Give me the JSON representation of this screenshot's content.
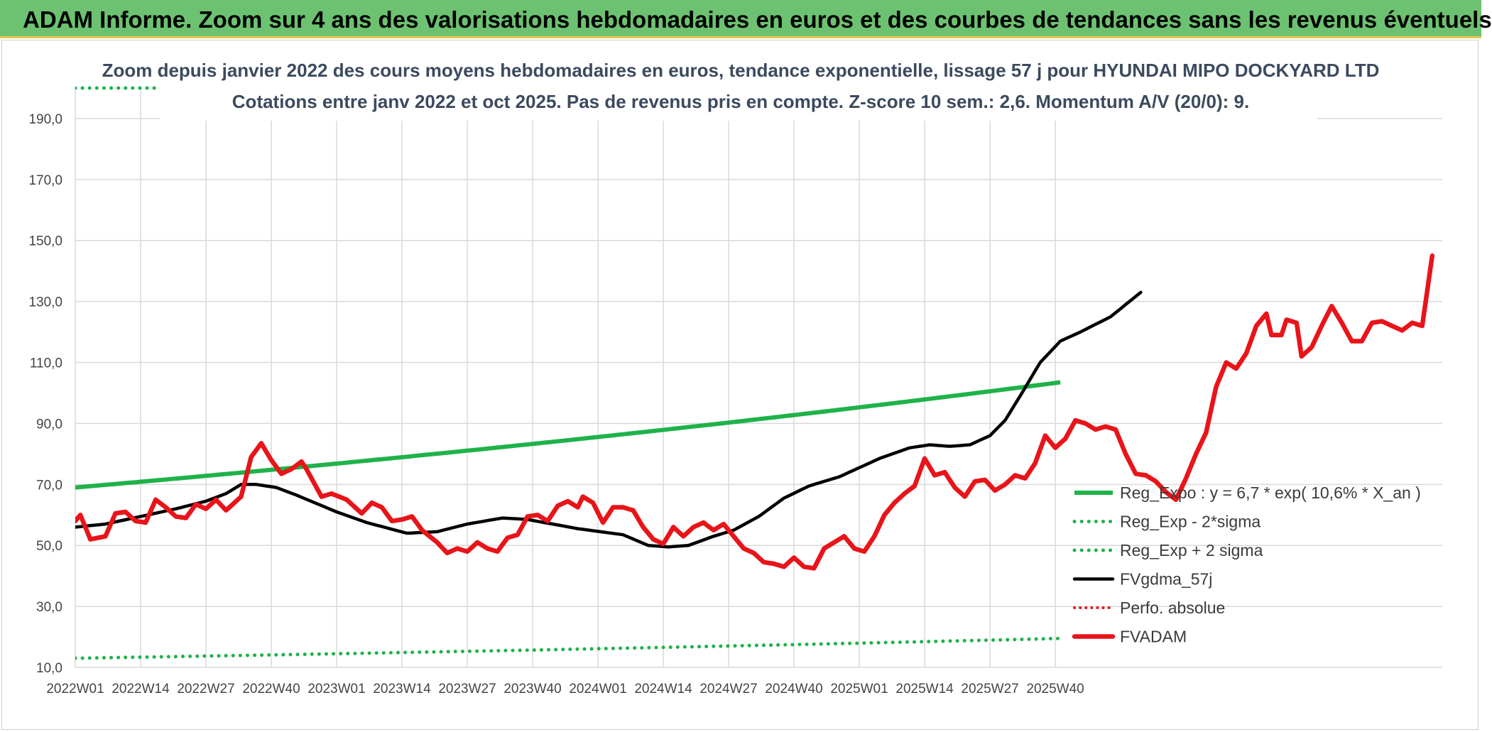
{
  "banner": {
    "title": "ADAM Informe. Zoom sur 4 ans des valorisations hebdomadaires en euros et des courbes de tendances sans les revenus éventuels"
  },
  "colors": {
    "banner_bg": "#6cc270",
    "reg_expo": "#1fb24a",
    "fvadam": "#e8141a",
    "fvgdma": "#000000",
    "perfo": "#e8141a"
  },
  "chart_data": {
    "type": "line",
    "title": "Zoom depuis janvier 2022 des cours moyens hebdomadaires en euros, tendance exponentielle, lissage 57 j pour HYUNDAI MIPO DOCKYARD LTD",
    "subtitle": "Cotations entre janv 2022 et oct 2025. Pas de revenus pris en compte. Z-score 10 sem.: 2,6. Momentum A/V (20/0): 9.",
    "xlabel": "",
    "ylabel": "",
    "ylim": [
      10,
      200
    ],
    "yticks": [
      "10,0",
      "30,0",
      "50,0",
      "70,0",
      "90,0",
      "110,0",
      "130,0",
      "150,0",
      "170,0",
      "190,0"
    ],
    "ytick_values": [
      10,
      30,
      50,
      70,
      90,
      110,
      130,
      150,
      170,
      190
    ],
    "xticks": [
      "2022W01",
      "2022W14",
      "2022W27",
      "2022W40",
      "2023W01",
      "2023W14",
      "2023W27",
      "2023W40",
      "2024W01",
      "2024W14",
      "2024W27",
      "2024W40",
      "2025W01",
      "2025W14",
      "2025W27",
      "2025W40"
    ],
    "weeks_total": 197,
    "legend_position": "bottom-right",
    "series": [
      {
        "name": "Reg_Expo : y = 6,7 * exp( 10,6% *  X_an )",
        "style": "solid-thick",
        "anchors": [
          [
            0,
            69.0
          ],
          [
            196,
            103.5
          ]
        ]
      },
      {
        "name": "Reg_Exp - 2*sigma",
        "style": "dotted",
        "anchors": [
          [
            0,
            13.0
          ],
          [
            196,
            19.5
          ]
        ]
      },
      {
        "name": "Reg_Exp + 2 sigma",
        "style": "dotted",
        "anchors": [
          [
            0,
            200.0
          ],
          [
            196,
            200.0
          ]
        ]
      },
      {
        "name": "FVgdma_57j",
        "style": "solid",
        "anchors": [
          [
            0,
            56
          ],
          [
            6,
            57
          ],
          [
            13,
            59.5
          ],
          [
            20,
            62
          ],
          [
            26,
            64.5
          ],
          [
            30,
            67
          ],
          [
            33,
            70
          ],
          [
            36,
            70
          ],
          [
            40,
            69
          ],
          [
            44,
            66.5
          ],
          [
            52,
            61
          ],
          [
            58,
            57.5
          ],
          [
            66,
            54
          ],
          [
            72,
            54.5
          ],
          [
            78,
            57
          ],
          [
            85,
            59
          ],
          [
            90,
            58.5
          ],
          [
            100,
            55.5
          ],
          [
            109,
            53.5
          ],
          [
            114,
            50
          ],
          [
            118,
            49.5
          ],
          [
            122,
            50
          ],
          [
            127,
            53
          ],
          [
            131,
            55
          ],
          [
            136,
            59.5
          ],
          [
            141,
            65.5
          ],
          [
            146,
            69.5
          ],
          [
            152,
            72.5
          ],
          [
            160,
            78.5
          ],
          [
            166,
            82
          ],
          [
            170,
            83
          ],
          [
            174,
            82.5
          ],
          [
            178,
            83
          ],
          [
            182,
            86
          ],
          [
            185,
            91
          ],
          [
            188,
            99
          ],
          [
            192,
            110
          ],
          [
            196,
            117
          ],
          [
            200,
            120
          ],
          [
            206,
            125
          ],
          [
            212,
            133
          ]
        ]
      },
      {
        "name": "Perfo. absolue",
        "style": "dotted-red",
        "anchors": []
      },
      {
        "name": "FVADAM",
        "style": "solid-thick-red",
        "anchors": [
          [
            0,
            58
          ],
          [
            1,
            60
          ],
          [
            3,
            52
          ],
          [
            6,
            53
          ],
          [
            8,
            60.5
          ],
          [
            10,
            61
          ],
          [
            12,
            58
          ],
          [
            14,
            57.5
          ],
          [
            16,
            65
          ],
          [
            18,
            62.5
          ],
          [
            20,
            59.5
          ],
          [
            22,
            59
          ],
          [
            24,
            63.5
          ],
          [
            26,
            62
          ],
          [
            28,
            65
          ],
          [
            30,
            61.5
          ],
          [
            33,
            66
          ],
          [
            35,
            79
          ],
          [
            37,
            83.5
          ],
          [
            39,
            78
          ],
          [
            41,
            73.5
          ],
          [
            43,
            75
          ],
          [
            45,
            77.5
          ],
          [
            46,
            75
          ],
          [
            49,
            66
          ],
          [
            51,
            67
          ],
          [
            54,
            65
          ],
          [
            57,
            60.5
          ],
          [
            59,
            64
          ],
          [
            61,
            62.5
          ],
          [
            63,
            58
          ],
          [
            65,
            58.5
          ],
          [
            67,
            59.5
          ],
          [
            69,
            55
          ],
          [
            72,
            51
          ],
          [
            74,
            47.5
          ],
          [
            76,
            49
          ],
          [
            78,
            48
          ],
          [
            80,
            51
          ],
          [
            82,
            49
          ],
          [
            84,
            48
          ],
          [
            86,
            52.5
          ],
          [
            88,
            53.5
          ],
          [
            90,
            59.5
          ],
          [
            92,
            60
          ],
          [
            94,
            58
          ],
          [
            96,
            63
          ],
          [
            98,
            64.5
          ],
          [
            100,
            62.5
          ],
          [
            101,
            66
          ],
          [
            103,
            64
          ],
          [
            105,
            57.5
          ],
          [
            107,
            62.5
          ],
          [
            109,
            62.5
          ],
          [
            111,
            61.5
          ],
          [
            113,
            56
          ],
          [
            115,
            52
          ],
          [
            117,
            50.5
          ],
          [
            119,
            56
          ],
          [
            121,
            53
          ],
          [
            123,
            56
          ],
          [
            125,
            57.5
          ],
          [
            127,
            55
          ],
          [
            129,
            57
          ],
          [
            131,
            53
          ],
          [
            133,
            49
          ],
          [
            135,
            47.5
          ],
          [
            137,
            44.5
          ],
          [
            139,
            44
          ],
          [
            141,
            43
          ],
          [
            143,
            46
          ],
          [
            145,
            43
          ],
          [
            147,
            42.5
          ],
          [
            149,
            49
          ],
          [
            151,
            51
          ],
          [
            153,
            53
          ],
          [
            155,
            49
          ],
          [
            157,
            48
          ],
          [
            159,
            53
          ],
          [
            161,
            60
          ],
          [
            163,
            64
          ],
          [
            165,
            67
          ],
          [
            167,
            69.5
          ],
          [
            169,
            78.5
          ],
          [
            171,
            73
          ],
          [
            173,
            74
          ],
          [
            175,
            69
          ],
          [
            177,
            66
          ],
          [
            179,
            71
          ],
          [
            181,
            71.5
          ],
          [
            183,
            68
          ],
          [
            185,
            70
          ],
          [
            187,
            73
          ],
          [
            189,
            72
          ],
          [
            191,
            77
          ],
          [
            193,
            86
          ],
          [
            195,
            82
          ],
          [
            197,
            85
          ],
          [
            199,
            91
          ],
          [
            201,
            90
          ],
          [
            203,
            88
          ],
          [
            205,
            89
          ],
          [
            207,
            88
          ],
          [
            209,
            80
          ],
          [
            211,
            73.5
          ],
          [
            213,
            73
          ],
          [
            215,
            71
          ],
          [
            217,
            67.5
          ],
          [
            219,
            65
          ],
          [
            221,
            72
          ],
          [
            223,
            80
          ],
          [
            225,
            87
          ],
          [
            227,
            102
          ],
          [
            229,
            110
          ],
          [
            231,
            108
          ],
          [
            233,
            113
          ],
          [
            235,
            122
          ],
          [
            237,
            126
          ],
          [
            238,
            119
          ],
          [
            240,
            119
          ],
          [
            241,
            124
          ],
          [
            243,
            123
          ],
          [
            244,
            112
          ],
          [
            246,
            115
          ],
          [
            248,
            122
          ],
          [
            250,
            128.5
          ],
          [
            252,
            123
          ],
          [
            254,
            117
          ],
          [
            256,
            117
          ],
          [
            258,
            123
          ],
          [
            260,
            123.5
          ],
          [
            262,
            122
          ],
          [
            264,
            120.5
          ],
          [
            266,
            123
          ],
          [
            268,
            122
          ],
          [
            270,
            145
          ]
        ]
      }
    ]
  }
}
